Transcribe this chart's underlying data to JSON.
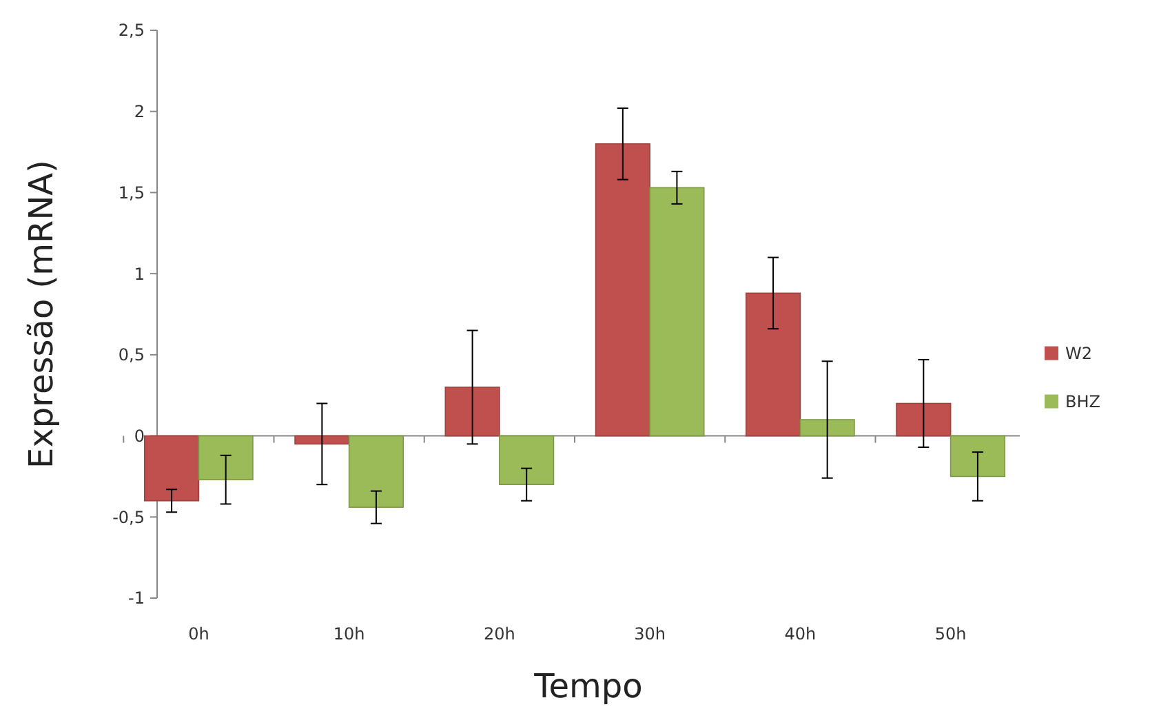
{
  "chart_data": {
    "type": "bar",
    "xlabel": "Tempo",
    "ylabel": "Expressão (mRNA)",
    "categories": [
      "0h",
      "10h",
      "20h",
      "30h",
      "40h",
      "50h"
    ],
    "series": [
      {
        "name": "W2",
        "color": "#c0504d",
        "values": [
          -0.4,
          -0.05,
          0.3,
          1.8,
          0.88,
          0.2
        ],
        "errors": [
          0.07,
          0.25,
          0.35,
          0.22,
          0.22,
          0.27
        ]
      },
      {
        "name": "BHZ",
        "color": "#9bbb59",
        "values": [
          -0.27,
          -0.44,
          -0.3,
          1.53,
          0.1,
          -0.25
        ],
        "errors": [
          0.15,
          0.1,
          0.1,
          0.1,
          0.36,
          0.15
        ]
      }
    ],
    "ylim": [
      -1,
      2.5
    ],
    "yticks": [
      {
        "value": -1,
        "label": "-1"
      },
      {
        "value": -0.5,
        "label": "-0,5"
      },
      0,
      {
        "value": 0.5,
        "label": "0,5"
      },
      1,
      {
        "value": 1.5,
        "label": "1,5"
      },
      2,
      {
        "value": 2.5,
        "label": "2,5"
      }
    ],
    "legend": "right"
  }
}
